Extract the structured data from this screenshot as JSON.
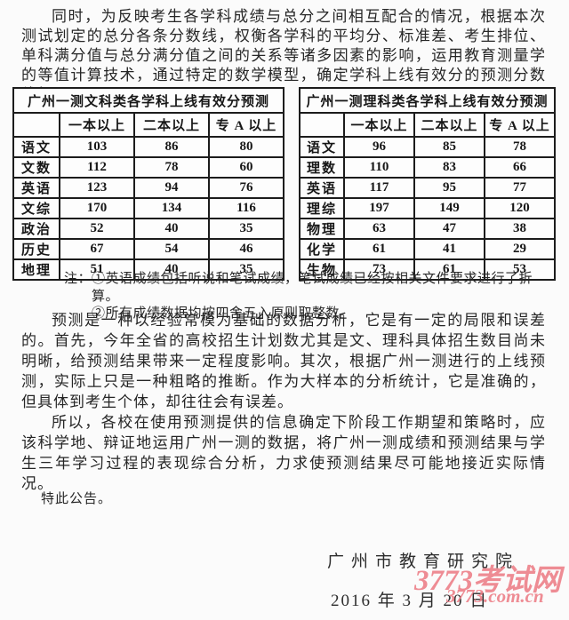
{
  "document": {
    "paragraph1": "同时，为反映考生各学科成绩与总分之间相互配合的情况，根据本次测试划定的总分各条分数线，权衡各学科的平均分、标准差、考生排位、单科满分值与总分满分值之间的关系等诸多因素的影响，运用教育测量学的等值计算技术，通过特定的数学模型，确定学科上线有效分的预测分数线如下：",
    "tables": [
      {
        "title": "广州一测文科类各学科上线有效分预测",
        "headers": [
          "",
          "一本以上",
          "二本以上",
          "专 A 以上"
        ],
        "rows": [
          [
            "语文",
            "103",
            "86",
            "80"
          ],
          [
            "文数",
            "112",
            "78",
            "60"
          ],
          [
            "英语",
            "123",
            "94",
            "76"
          ],
          [
            "文综",
            "170",
            "134",
            "116"
          ],
          [
            "政治",
            "52",
            "40",
            "35"
          ],
          [
            "历史",
            "67",
            "54",
            "46"
          ],
          [
            "地理",
            "51",
            "40",
            "35"
          ]
        ]
      },
      {
        "title": "广州一测理科类各学科上线有效分预测",
        "headers": [
          "",
          "一本以上",
          "二本以上",
          "专 A 以上"
        ],
        "rows": [
          [
            "语文",
            "96",
            "85",
            "78"
          ],
          [
            "理数",
            "110",
            "83",
            "66"
          ],
          [
            "英语",
            "117",
            "95",
            "77"
          ],
          [
            "理综",
            "197",
            "149",
            "120"
          ],
          [
            "物理",
            "63",
            "47",
            "38"
          ],
          [
            "化学",
            "61",
            "41",
            "29"
          ],
          [
            "生物",
            "73",
            "61",
            "53"
          ]
        ]
      }
    ],
    "notes": {
      "label": "注：",
      "items": [
        "①英语成绩包括听说和笔试成绩，笔试成绩已经按相关文件要求进行了折算。",
        "②所有成绩数据均按四舍五入原则取整数。"
      ]
    },
    "paragraph2": "预测是一种以经验常模为基础的数据分析，它是有一定的局限和误差的。首先，今年全省的高校招生计划数尤其是文、理科具体招生数目尚未明晰，给预测结果带来一定程度影响。其次，根据广州一测进行的上线预测，实际上只是一种粗略的推断。作为大样本的分析统计，它是准确的，但具体到考生个体，却往往会有误差。",
    "paragraph3": "所以，各校在使用预测提供的信息确定下阶段工作期望和策略时，应该科学地、辩证地运用广州一测的数据，将广州一测成绩和预测结果与学生三年学习过程的表现综合分析，力求使预测结果尽可能地接近实际情况。",
    "closing": "特此公告。",
    "signature": "广州市教育研究院",
    "date": "2016 年 3 月 20 日"
  },
  "watermark": {
    "line1": "3773考试网",
    "line2": "3773.com.cn",
    "color": "#ed7d86"
  }
}
